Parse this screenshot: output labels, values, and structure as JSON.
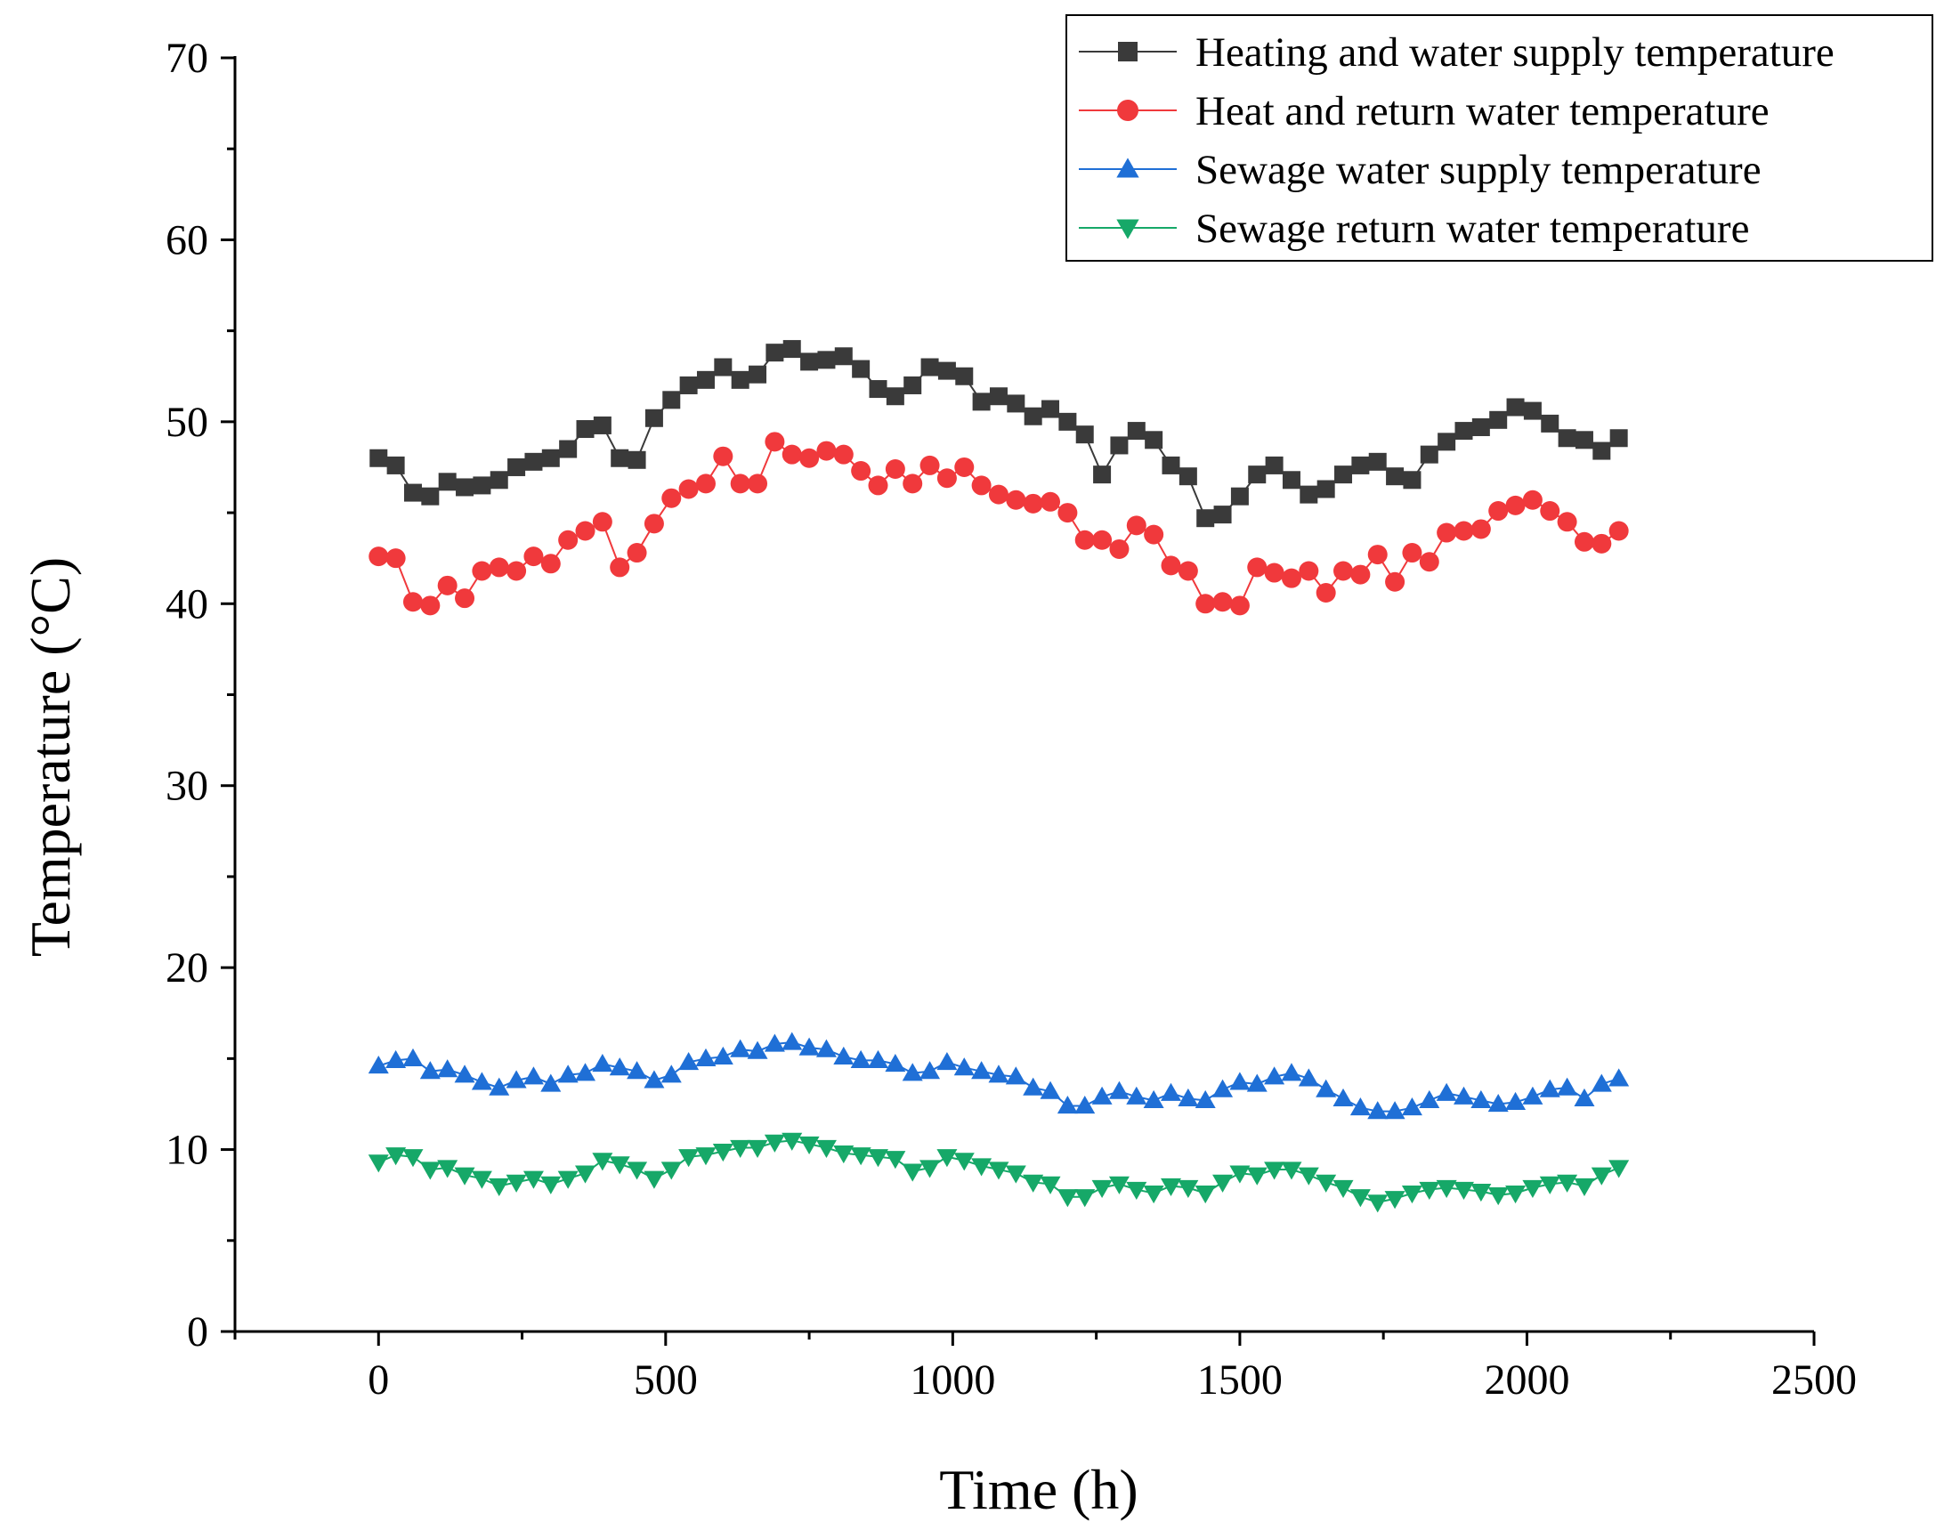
{
  "chart_data": {
    "type": "line",
    "xlabel": "Time (h)",
    "ylabel": "Temperature (°C)",
    "xlim": [
      -250,
      2500
    ],
    "ylim": [
      0,
      70
    ],
    "xticks": [
      0,
      500,
      1000,
      1500,
      2000,
      2500
    ],
    "yticks": [
      0,
      10,
      20,
      30,
      40,
      50,
      60,
      70
    ],
    "grid": false,
    "legend_position": "top-right",
    "x": [
      0,
      30,
      60,
      90,
      120,
      150,
      180,
      210,
      240,
      270,
      300,
      330,
      360,
      390,
      420,
      450,
      480,
      510,
      540,
      570,
      600,
      630,
      660,
      690,
      720,
      750,
      780,
      810,
      840,
      870,
      900,
      930,
      960,
      990,
      1020,
      1050,
      1080,
      1110,
      1140,
      1170,
      1200,
      1230,
      1260,
      1290,
      1320,
      1350,
      1380,
      1410,
      1440,
      1470,
      1500,
      1530,
      1560,
      1590,
      1620,
      1650,
      1680,
      1710,
      1740,
      1770,
      1800,
      1830,
      1860,
      1890,
      1920,
      1950,
      1980,
      2010,
      2040,
      2070,
      2100,
      2130,
      2160
    ],
    "series": [
      {
        "name": "Heating and water supply temperature",
        "color": "#3a3a3a",
        "marker": "square",
        "values": [
          48.0,
          47.6,
          46.1,
          45.9,
          46.7,
          46.4,
          46.5,
          46.8,
          47.5,
          47.8,
          48.0,
          48.5,
          49.6,
          49.8,
          48.0,
          47.9,
          50.2,
          51.2,
          52.0,
          52.3,
          53.0,
          52.3,
          52.6,
          53.8,
          54.0,
          53.3,
          53.4,
          53.6,
          52.9,
          51.8,
          51.4,
          52.0,
          53.0,
          52.8,
          52.5,
          51.1,
          51.4,
          51.0,
          50.3,
          50.7,
          50.0,
          49.3,
          47.1,
          48.7,
          49.5,
          49.0,
          47.6,
          47.0,
          44.7,
          44.9,
          45.9,
          47.1,
          47.6,
          46.8,
          46.0,
          46.3,
          47.1,
          47.6,
          47.8,
          47.0,
          46.8,
          48.2,
          48.9,
          49.5,
          49.7,
          50.1,
          50.8,
          50.6,
          49.9,
          49.1,
          49.0,
          48.4,
          49.1
        ]
      },
      {
        "name": "Heat and return water temperature",
        "color": "#f0393c",
        "marker": "circle",
        "values": [
          42.6,
          42.5,
          40.1,
          39.9,
          41.0,
          40.3,
          41.8,
          42.0,
          41.8,
          42.6,
          42.2,
          43.5,
          44.0,
          44.5,
          42.0,
          42.8,
          44.4,
          45.8,
          46.3,
          46.6,
          48.1,
          46.6,
          46.6,
          48.9,
          48.2,
          48.0,
          48.4,
          48.2,
          47.3,
          46.5,
          47.4,
          46.6,
          47.6,
          46.9,
          47.5,
          46.5,
          46.0,
          45.7,
          45.5,
          45.6,
          45.0,
          43.5,
          43.5,
          43.0,
          44.3,
          43.8,
          42.1,
          41.8,
          40.0,
          40.1,
          39.9,
          42.0,
          41.7,
          41.4,
          41.8,
          40.6,
          41.8,
          41.6,
          42.7,
          41.2,
          42.8,
          42.3,
          43.9,
          44.0,
          44.1,
          45.1,
          45.4,
          45.7,
          45.1,
          44.5,
          43.4,
          43.3,
          44.0
        ]
      },
      {
        "name": "Sewage water supply temperature",
        "color": "#1f6fd6",
        "marker": "triangle-up",
        "values": [
          14.6,
          14.9,
          15.0,
          14.3,
          14.4,
          14.1,
          13.7,
          13.4,
          13.8,
          14.0,
          13.6,
          14.1,
          14.2,
          14.7,
          14.5,
          14.3,
          13.8,
          14.1,
          14.8,
          15.0,
          15.1,
          15.5,
          15.4,
          15.8,
          15.9,
          15.6,
          15.5,
          15.1,
          14.9,
          14.9,
          14.7,
          14.2,
          14.3,
          14.8,
          14.5,
          14.3,
          14.1,
          14.0,
          13.4,
          13.2,
          12.4,
          12.4,
          12.9,
          13.2,
          12.9,
          12.7,
          13.1,
          12.8,
          12.7,
          13.3,
          13.7,
          13.6,
          14.0,
          14.2,
          13.9,
          13.3,
          12.8,
          12.3,
          12.1,
          12.1,
          12.3,
          12.7,
          13.1,
          12.9,
          12.7,
          12.5,
          12.6,
          12.9,
          13.3,
          13.4,
          12.8,
          13.6,
          13.9
        ]
      },
      {
        "name": "Sewage return water temperature",
        "color": "#16a868",
        "marker": "triangle-down",
        "values": [
          9.3,
          9.7,
          9.6,
          8.9,
          9.0,
          8.6,
          8.4,
          8.0,
          8.2,
          8.4,
          8.1,
          8.4,
          8.7,
          9.4,
          9.2,
          8.9,
          8.4,
          8.9,
          9.6,
          9.7,
          9.9,
          10.1,
          10.1,
          10.4,
          10.5,
          10.3,
          10.1,
          9.8,
          9.7,
          9.6,
          9.5,
          8.8,
          9.0,
          9.6,
          9.4,
          9.1,
          8.9,
          8.7,
          8.2,
          8.1,
          7.4,
          7.4,
          7.9,
          8.1,
          7.8,
          7.6,
          8.0,
          7.9,
          7.6,
          8.2,
          8.7,
          8.6,
          8.9,
          8.9,
          8.6,
          8.2,
          7.9,
          7.4,
          7.1,
          7.3,
          7.6,
          7.8,
          7.9,
          7.8,
          7.7,
          7.5,
          7.6,
          7.9,
          8.1,
          8.2,
          8.0,
          8.6,
          9.0
        ]
      }
    ]
  }
}
